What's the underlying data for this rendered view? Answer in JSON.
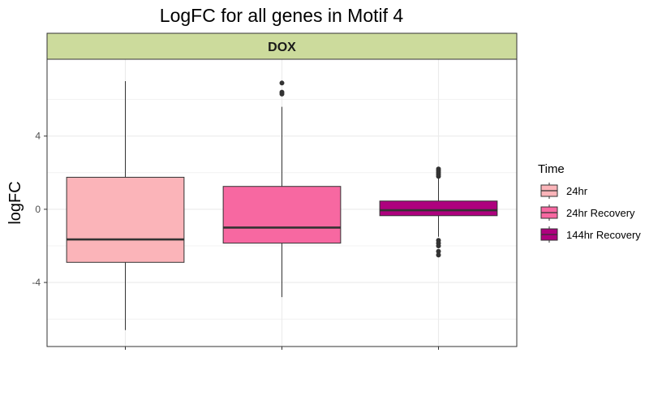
{
  "chart_data": {
    "type": "box",
    "title": "LogFC for all genes in Motif 4",
    "facet": "DOX",
    "xlabel": "",
    "ylabel": "logFC",
    "ylim": [
      -7.5,
      8.2
    ],
    "yticks": [
      -4,
      0,
      4
    ],
    "grid": true,
    "legend": {
      "title": "Time",
      "position": "right"
    },
    "colors": {
      "strip_bg": "#ccdb9c",
      "grid": "#ebebeb",
      "box_edge": "#333333"
    },
    "series": [
      {
        "name": "24hr",
        "color": "#fbb4b9",
        "whisker_low": -6.6,
        "q1": -2.9,
        "median": -1.65,
        "q3": 1.75,
        "whisker_high": 7.0,
        "outliers": []
      },
      {
        "name": "24hr Recovery",
        "color": "#f768a1",
        "whisker_low": -4.8,
        "q1": -1.85,
        "median": -1.0,
        "q3": 1.25,
        "whisker_high": 5.6,
        "outliers": [
          6.3,
          6.4,
          6.9
        ]
      },
      {
        "name": "144hr Recovery",
        "color": "#ae017e",
        "whisker_low": -1.5,
        "q1": -0.35,
        "median": -0.05,
        "q3": 0.45,
        "whisker_high": 1.7,
        "outliers": [
          1.8,
          1.9,
          2.0,
          2.1,
          2.2,
          -1.7,
          -1.85,
          -2.0,
          -2.3,
          -2.5
        ]
      }
    ]
  }
}
